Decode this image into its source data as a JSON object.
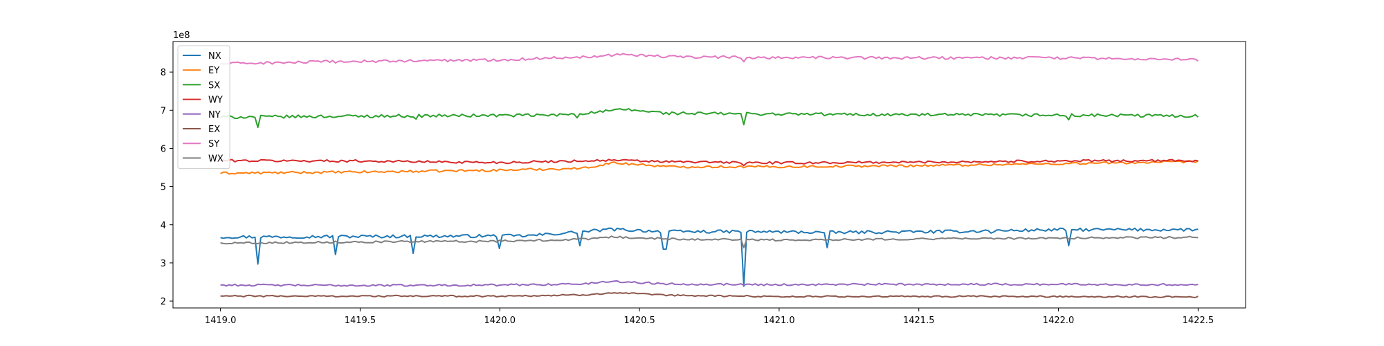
{
  "chart_data": {
    "type": "line",
    "title": "",
    "xlabel": "",
    "ylabel": "",
    "offset_text": "1e8",
    "xlim": [
      1418.83,
      1422.67
    ],
    "ylim": [
      1.82,
      8.8
    ],
    "x_start": 1419.0,
    "x_end": 1422.5,
    "x_ticks": [
      1419.0,
      1419.5,
      1420.0,
      1420.5,
      1421.0,
      1421.5,
      1422.0,
      1422.5
    ],
    "x_tick_labels": [
      "1419.0",
      "1419.5",
      "1420.0",
      "1420.5",
      "1421.0",
      "1421.5",
      "1422.0",
      "1422.5"
    ],
    "y_ticks": [
      2,
      3,
      4,
      5,
      6,
      7,
      8
    ],
    "y_tick_labels": [
      "2",
      "3",
      "4",
      "5",
      "6",
      "7",
      "8"
    ],
    "grid": false,
    "legend_position": "upper left",
    "series": [
      {
        "name": "NX",
        "color": "#1f77b4",
        "base": 3.68,
        "trend": [
          [
            1419.0,
            3.68
          ],
          [
            1420.1,
            3.71
          ],
          [
            1420.3,
            3.82
          ],
          [
            1420.4,
            3.88
          ],
          [
            1420.6,
            3.82
          ],
          [
            1420.9,
            3.82
          ],
          [
            1421.2,
            3.8
          ],
          [
            1421.6,
            3.82
          ],
          [
            1422.0,
            3.87
          ],
          [
            1422.5,
            3.87
          ]
        ],
        "noise": 0.04,
        "dips": [
          [
            1419.13,
            2.97
          ],
          [
            1419.41,
            3.22
          ],
          [
            1419.69,
            3.25
          ],
          [
            1420.0,
            3.38
          ],
          [
            1420.29,
            3.45
          ],
          [
            1420.59,
            3.36
          ],
          [
            1420.87,
            2.39
          ],
          [
            1421.17,
            3.4
          ],
          [
            1421.76,
            3.78
          ],
          [
            1422.04,
            3.45
          ]
        ]
      },
      {
        "name": "EY",
        "color": "#ff7f0e",
        "base": 5.35,
        "trend": [
          [
            1419.0,
            5.35
          ],
          [
            1419.5,
            5.38
          ],
          [
            1420.0,
            5.43
          ],
          [
            1420.3,
            5.48
          ],
          [
            1420.4,
            5.62
          ],
          [
            1420.5,
            5.58
          ],
          [
            1420.6,
            5.52
          ],
          [
            1421.0,
            5.52
          ],
          [
            1421.5,
            5.55
          ],
          [
            1422.0,
            5.6
          ],
          [
            1422.5,
            5.65
          ]
        ],
        "noise": 0.03,
        "dips": []
      },
      {
        "name": "SX",
        "color": "#2ca02c",
        "base": 6.82,
        "trend": [
          [
            1419.0,
            6.82
          ],
          [
            1419.6,
            6.85
          ],
          [
            1420.2,
            6.87
          ],
          [
            1420.35,
            6.95
          ],
          [
            1420.45,
            7.02
          ],
          [
            1420.6,
            6.92
          ],
          [
            1421.0,
            6.9
          ],
          [
            1421.5,
            6.88
          ],
          [
            1422.0,
            6.87
          ],
          [
            1422.5,
            6.85
          ]
        ],
        "noise": 0.04,
        "dips": [
          [
            1419.13,
            6.55
          ],
          [
            1419.7,
            6.77
          ],
          [
            1420.28,
            6.8
          ],
          [
            1420.87,
            6.62
          ],
          [
            1422.04,
            6.75
          ]
        ]
      },
      {
        "name": "WY",
        "color": "#d62728",
        "base": 5.68,
        "trend": [
          [
            1419.0,
            5.68
          ],
          [
            1419.5,
            5.67
          ],
          [
            1420.0,
            5.63
          ],
          [
            1420.4,
            5.69
          ],
          [
            1420.6,
            5.65
          ],
          [
            1421.0,
            5.62
          ],
          [
            1421.5,
            5.64
          ],
          [
            1422.0,
            5.67
          ],
          [
            1422.5,
            5.68
          ]
        ],
        "noise": 0.03,
        "dips": [
          [
            1420.87,
            5.55
          ]
        ]
      },
      {
        "name": "NY",
        "color": "#9467bd",
        "base": 2.42,
        "trend": [
          [
            1419.0,
            2.42
          ],
          [
            1419.5,
            2.41
          ],
          [
            1420.0,
            2.42
          ],
          [
            1420.3,
            2.45
          ],
          [
            1420.4,
            2.52
          ],
          [
            1420.6,
            2.45
          ],
          [
            1421.0,
            2.43
          ],
          [
            1421.5,
            2.44
          ],
          [
            1422.0,
            2.44
          ],
          [
            1422.5,
            2.43
          ]
        ],
        "noise": 0.025,
        "dips": []
      },
      {
        "name": "EX",
        "color": "#8c564b",
        "base": 2.13,
        "trend": [
          [
            1419.0,
            2.13
          ],
          [
            1419.5,
            2.13
          ],
          [
            1420.0,
            2.13
          ],
          [
            1420.3,
            2.16
          ],
          [
            1420.4,
            2.22
          ],
          [
            1420.6,
            2.15
          ],
          [
            1421.0,
            2.12
          ],
          [
            1421.5,
            2.12
          ],
          [
            1422.0,
            2.12
          ],
          [
            1422.5,
            2.11
          ]
        ],
        "noise": 0.02,
        "dips": []
      },
      {
        "name": "SY",
        "color": "#e377c2",
        "base": 8.22,
        "trend": [
          [
            1419.0,
            8.22
          ],
          [
            1419.4,
            8.27
          ],
          [
            1420.0,
            8.32
          ],
          [
            1420.3,
            8.4
          ],
          [
            1420.45,
            8.47
          ],
          [
            1420.6,
            8.4
          ],
          [
            1421.0,
            8.38
          ],
          [
            1421.5,
            8.37
          ],
          [
            1422.0,
            8.37
          ],
          [
            1422.5,
            8.32
          ]
        ],
        "noise": 0.035,
        "dips": [
          [
            1420.87,
            8.27
          ]
        ]
      },
      {
        "name": "WX",
        "color": "#7f7f7f",
        "base": 3.52,
        "trend": [
          [
            1419.0,
            3.52
          ],
          [
            1419.5,
            3.55
          ],
          [
            1420.0,
            3.57
          ],
          [
            1420.3,
            3.62
          ],
          [
            1420.4,
            3.68
          ],
          [
            1420.6,
            3.63
          ],
          [
            1421.0,
            3.6
          ],
          [
            1421.5,
            3.63
          ],
          [
            1422.0,
            3.65
          ],
          [
            1422.5,
            3.67
          ]
        ],
        "noise": 0.025,
        "dips": [
          [
            1420.87,
            3.4
          ]
        ]
      }
    ]
  }
}
